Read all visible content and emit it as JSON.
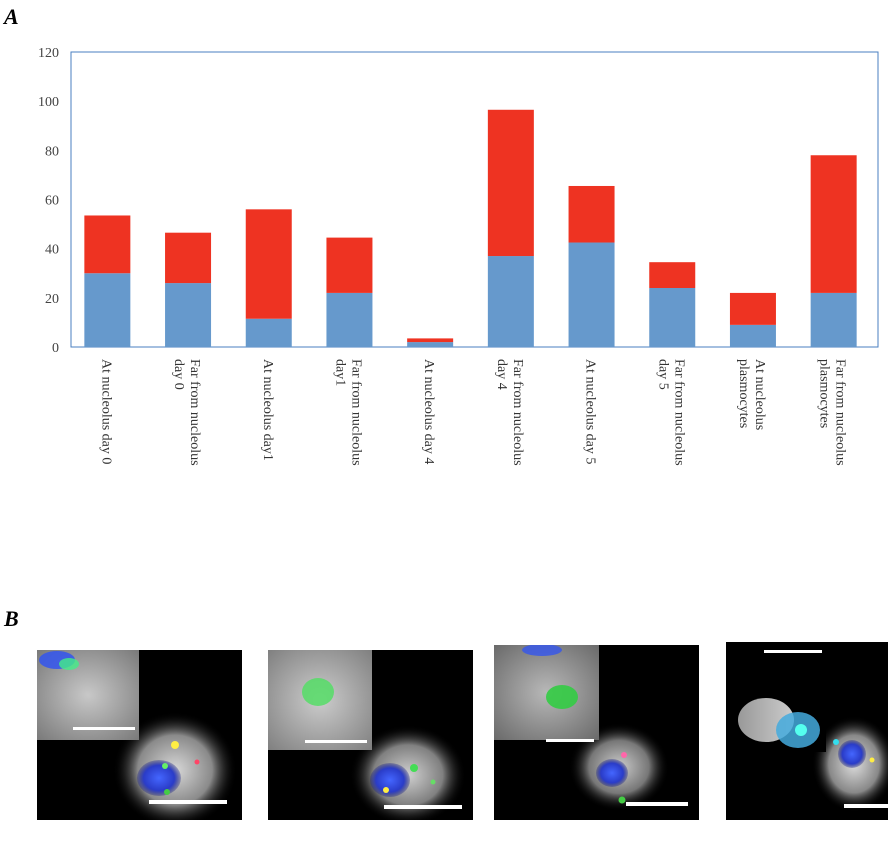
{
  "figure": {
    "panel_a_label": "A",
    "panel_b_label": "B"
  },
  "chart_data": {
    "type": "bar",
    "stacked": true,
    "categories": [
      "At nucleolus day 0",
      "Far from nucleolus day 0",
      "At nucleolus day1",
      "Far from nucleolus day1",
      "At nucleolus day 4",
      "Far from nucleolus day 4",
      "At nucleolus day 5",
      "Far from nucleolus day 5",
      "At nucleolus plasmocytes",
      "Far from nucleolus plasmocytes"
    ],
    "category_lines": [
      [
        "At nucleolus day 0"
      ],
      [
        "Far from nucleolus",
        "day 0"
      ],
      [
        "At nucleolus day1"
      ],
      [
        "Far from nucleolus",
        "day1"
      ],
      [
        "At nucleolus day 4"
      ],
      [
        "Far from nucleolus",
        "day 4"
      ],
      [
        "At nucleolus day 5"
      ],
      [
        "Far from nucleolus",
        "day 5"
      ],
      [
        "At nucleolus",
        "plasmocytes"
      ],
      [
        "Far from nucleolus",
        "plasmocytes"
      ]
    ],
    "series": [
      {
        "color": "#6699cc",
        "values": [
          30,
          26,
          11.5,
          22,
          2,
          37,
          42.5,
          24,
          9,
          22
        ]
      },
      {
        "color": "#ee3322",
        "values": [
          23.5,
          20.5,
          44.5,
          22.5,
          1.5,
          59.5,
          23,
          10.5,
          13,
          56
        ]
      }
    ],
    "ylim": [
      0,
      120
    ],
    "yticks": [
      0,
      20,
      40,
      60,
      80,
      100,
      120
    ],
    "grid": false,
    "legend": "none"
  },
  "micrographs": [
    {
      "name": "micrograph-1"
    },
    {
      "name": "micrograph-2"
    },
    {
      "name": "micrograph-3"
    },
    {
      "name": "micrograph-4"
    }
  ]
}
